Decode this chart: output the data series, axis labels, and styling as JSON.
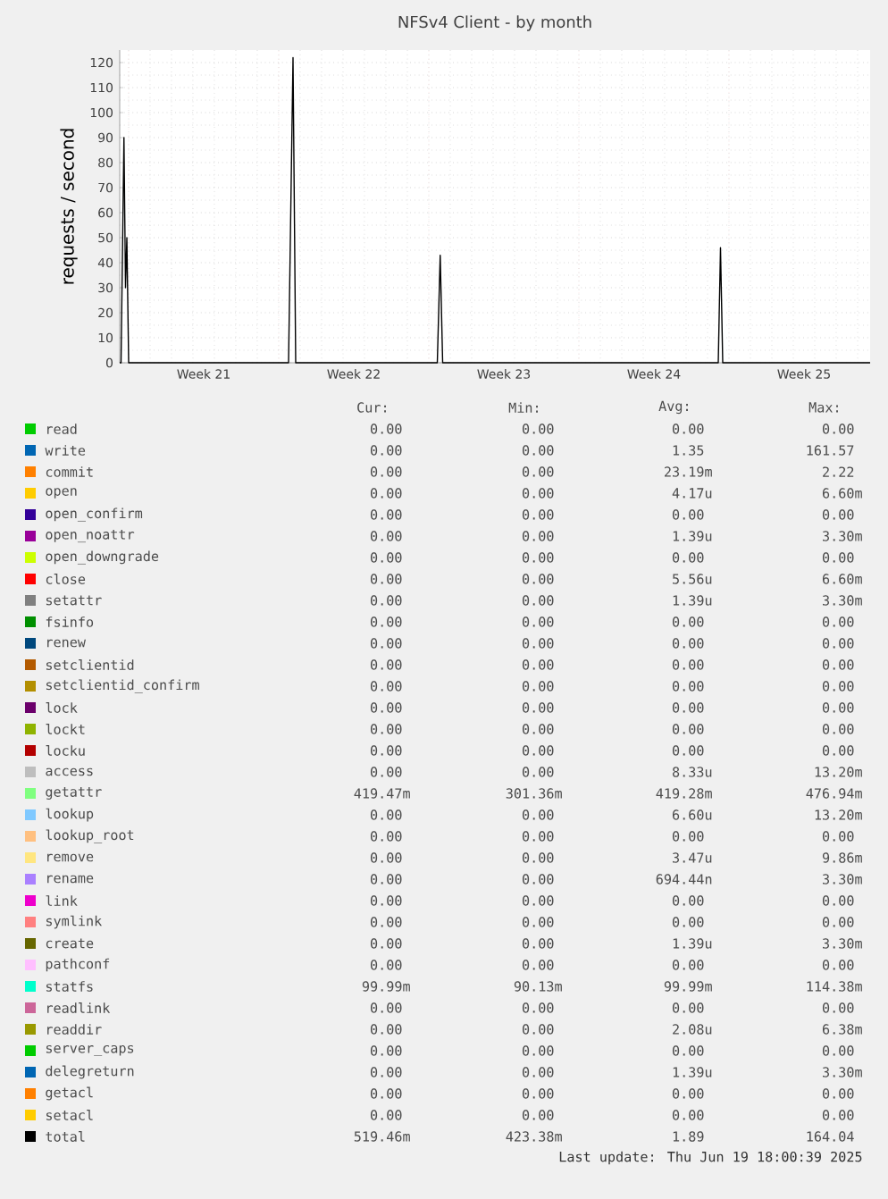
{
  "chart_data": {
    "type": "line",
    "title": "NFSv4 Client - by month",
    "ylabel": "requests / second",
    "xlim": [
      "2025-05-15T18:00",
      "2025-06-19T18:00"
    ],
    "xticks": [
      {
        "value": "2025-05-16T04:00",
        "label": null
      },
      {
        "value": "2025-05-19T16:00",
        "label": "Week 21"
      },
      {
        "value": "2025-05-23T04:00",
        "label": null
      },
      {
        "value": "2025-05-26T16:00",
        "label": "Week 22"
      },
      {
        "value": "2025-05-30T04:00",
        "label": null
      },
      {
        "value": "2025-06-02T16:00",
        "label": "Week 23"
      },
      {
        "value": "2025-06-06T04:00",
        "label": null
      },
      {
        "value": "2025-06-09T16:00",
        "label": "Week 24"
      },
      {
        "value": "2025-06-13T04:00",
        "label": null
      },
      {
        "value": "2025-06-16T16:00",
        "label": "Week 25"
      }
    ],
    "ylim": [
      0,
      125
    ],
    "yticks": [
      0,
      10,
      20,
      30,
      40,
      50,
      60,
      70,
      80,
      90,
      100,
      110,
      120
    ],
    "grid": true,
    "legend": "bottom",
    "series": [
      {
        "name": "read",
        "color": "#00cc00",
        "values": [
          null,
          null
        ]
      },
      {
        "name": "write",
        "color": "#0066b3",
        "values": [
          null,
          null
        ]
      },
      {
        "name": "commit",
        "color": "#ff8000",
        "values": [
          null,
          null
        ]
      },
      {
        "name": "open",
        "color": "#ffcc00",
        "values": [
          null,
          null
        ]
      },
      {
        "name": "open_confirm",
        "color": "#330099",
        "values": [
          null,
          null
        ]
      },
      {
        "name": "open_noattr",
        "color": "#990099",
        "values": [
          null,
          null
        ]
      },
      {
        "name": "open_downgrade",
        "color": "#ccff00",
        "values": [
          null,
          null
        ]
      },
      {
        "name": "close",
        "color": "#ff0000",
        "values": [
          null,
          null
        ]
      },
      {
        "name": "setattr",
        "color": "#808080",
        "values": [
          null,
          null
        ]
      },
      {
        "name": "fsinfo",
        "color": "#008f00",
        "values": [
          null,
          null
        ]
      },
      {
        "name": "renew",
        "color": "#00487d",
        "values": [
          null,
          null
        ]
      },
      {
        "name": "setclientid",
        "color": "#b35a00",
        "values": [
          null,
          null
        ]
      },
      {
        "name": "setclientid_confirm",
        "color": "#b38f00",
        "values": [
          null,
          null
        ]
      },
      {
        "name": "lock",
        "color": "#6b006b",
        "values": [
          null,
          null
        ]
      },
      {
        "name": "lockt",
        "color": "#8fb300",
        "values": [
          null,
          null
        ]
      },
      {
        "name": "locku",
        "color": "#b30000",
        "values": [
          null,
          null
        ]
      },
      {
        "name": "access",
        "color": "#bebebe",
        "values": [
          null,
          null
        ]
      },
      {
        "name": "getattr",
        "color": "#80ff80",
        "values": [
          null,
          null
        ]
      },
      {
        "name": "lookup",
        "color": "#80c9ff",
        "values": [
          null,
          null
        ]
      },
      {
        "name": "lookup_root",
        "color": "#ffc080",
        "values": [
          null,
          null
        ]
      },
      {
        "name": "remove",
        "color": "#ffe680",
        "values": [
          null,
          null
        ]
      },
      {
        "name": "rename",
        "color": "#aa80ff",
        "values": [
          null,
          null
        ]
      },
      {
        "name": "link",
        "color": "#ee00cc",
        "values": [
          null,
          null
        ]
      },
      {
        "name": "symlink",
        "color": "#ff8080",
        "values": [
          null,
          null
        ]
      },
      {
        "name": "create",
        "color": "#666600",
        "values": [
          null,
          null
        ]
      },
      {
        "name": "pathconf",
        "color": "#ffbfff",
        "values": [
          null,
          null
        ]
      },
      {
        "name": "statfs",
        "color": "#00ffcc",
        "values": [
          null,
          null
        ]
      },
      {
        "name": "readlink",
        "color": "#cc6699",
        "values": [
          null,
          null
        ]
      },
      {
        "name": "readdir",
        "color": "#999900",
        "values": [
          null,
          null
        ]
      },
      {
        "name": "server_caps",
        "color": "#00cc00",
        "values": [
          null,
          null
        ]
      },
      {
        "name": "delegreturn",
        "color": "#0066b3",
        "values": [
          null,
          null
        ]
      },
      {
        "name": "getacl",
        "color": "#ff8000",
        "values": [
          null,
          null
        ]
      },
      {
        "name": "setacl",
        "color": "#ffcc00",
        "values": [
          null,
          null
        ]
      },
      {
        "name": "total",
        "color": "#000000",
        "x": [
          "2025-05-15T18:00",
          "2025-05-15T19:30",
          "2025-05-15T22:45",
          "2025-05-16T00:30",
          "2025-05-16T02:00",
          "2025-05-16T04:00",
          "2025-05-23T15:00",
          "2025-05-23T20:00",
          "2025-05-23T23:00",
          "2025-05-30T13:30",
          "2025-05-30T16:45",
          "2025-05-30T19:30",
          "2025-06-12T16:00",
          "2025-06-12T18:30",
          "2025-06-12T21:00",
          "2025-06-19T18:00"
        ],
        "values": [
          0,
          0,
          90,
          30,
          50,
          0,
          0,
          122,
          0,
          0,
          43,
          0,
          0,
          46,
          0,
          0
        ]
      }
    ],
    "annotations": [
      "Cur:",
      "Min:",
      "Avg:",
      "Max:",
      "0.00",
      "0.00",
      "0.00",
      "0.00",
      "0.00",
      "0.00",
      "1.35",
      "161.57",
      "0.00",
      "0.00",
      "23.19m",
      "2.22",
      "0.00",
      "0.00",
      "4.17u",
      "6.60m",
      "0.00",
      "0.00",
      "0.00",
      "0.00",
      "0.00",
      "0.00",
      "1.39u",
      "3.30m",
      "0.00",
      "0.00",
      "0.00",
      "0.00",
      "0.00",
      "0.00",
      "5.56u",
      "6.60m",
      "0.00",
      "0.00",
      "1.39u",
      "3.30m",
      "0.00",
      "0.00",
      "0.00",
      "0.00",
      "0.00",
      "0.00",
      "0.00",
      "0.00",
      "0.00",
      "0.00",
      "0.00",
      "0.00",
      "0.00",
      "0.00",
      "0.00",
      "0.00",
      "0.00",
      "0.00",
      "0.00",
      "0.00",
      "0.00",
      "0.00",
      "0.00",
      "0.00",
      "0.00",
      "0.00",
      "0.00",
      "0.00",
      "0.00",
      "0.00",
      "8.33u",
      "13.20m",
      "419.47m",
      "301.36m",
      "419.28m",
      "476.94m",
      "0.00",
      "0.00",
      "6.60u",
      "13.20m",
      "0.00",
      "0.00",
      "0.00",
      "0.00",
      "0.00",
      "0.00",
      "3.47u",
      "9.86m",
      "0.00",
      "0.00",
      "694.44n",
      "3.30m",
      "0.00",
      "0.00",
      "0.00",
      "0.00",
      "0.00",
      "0.00",
      "0.00",
      "0.00",
      "0.00",
      "0.00",
      "1.39u",
      "3.30m",
      "0.00",
      "0.00",
      "0.00",
      "0.00",
      "99.99m",
      "90.13m",
      "99.99m",
      "114.38m",
      "0.00",
      "0.00",
      "0.00",
      "0.00",
      "0.00",
      "0.00",
      "2.08u",
      "6.38m",
      "0.00",
      "0.00",
      "0.00",
      "0.00",
      "0.00",
      "0.00",
      "1.39u",
      "3.30m",
      "0.00",
      "0.00",
      "0.00",
      "0.00",
      "0.00",
      "0.00",
      "0.00",
      "0.00",
      "519.46m",
      "423.38m",
      "1.89",
      "164.04",
      "Last update: Thu Jun 19 18:00:39 2025"
    ]
  }
}
